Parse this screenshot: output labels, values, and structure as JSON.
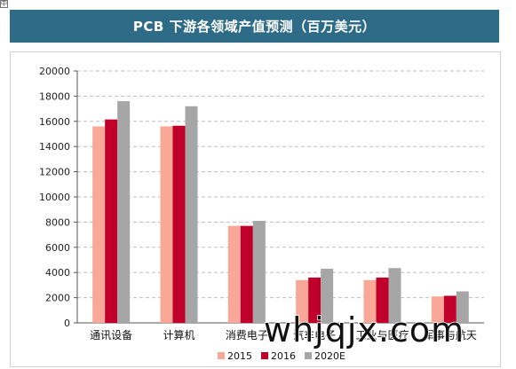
{
  "header": {
    "corner_mark": "中",
    "title": "PCB 下游各领域产值预测（百万美元）"
  },
  "watermark": "whjqjx.com",
  "chart_data": {
    "type": "bar",
    "title": "PCB 下游各领域产值预测（百万美元）",
    "categories": [
      "通讯设备",
      "计算机",
      "消费电子",
      "汽车电子",
      "工业与医疗",
      "军事与航天"
    ],
    "series": [
      {
        "name": "2015",
        "color": "#f9a797",
        "values": [
          15600,
          15600,
          7700,
          3400,
          3400,
          2100
        ]
      },
      {
        "name": "2016",
        "color": "#c0002a",
        "values": [
          16150,
          15650,
          7700,
          3600,
          3600,
          2150
        ]
      },
      {
        "name": "2020E",
        "color": "#a6a6a6",
        "values": [
          17600,
          17200,
          8100,
          4300,
          4350,
          2500
        ]
      }
    ],
    "ylim": [
      0,
      20000
    ],
    "yticks": [
      "0",
      "2000",
      "4000",
      "6000",
      "8000",
      "10000",
      "12000",
      "14000",
      "16000",
      "18000",
      "20000"
    ],
    "grid": true,
    "legend_position": "bottom"
  }
}
